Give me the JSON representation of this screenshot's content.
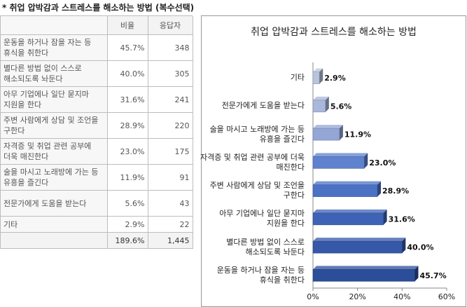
{
  "title": "* 취업 압박감과 스트레스를 해소하는 방법 (복수선택)",
  "table": {
    "headers": [
      "",
      "비율",
      "응답자"
    ],
    "rows": [
      {
        "label": "운동을 하거나 잠을 자는 등 휴식을 취한다",
        "ratio": "45.7%",
        "count": "348"
      },
      {
        "label": "별다른 방법 없이 스스로 해소되도록 놔둔다",
        "ratio": "40.0%",
        "count": "305"
      },
      {
        "label": "아무 기업에나 일단 묻지마 지원을 한다",
        "ratio": "31.6%",
        "count": "241"
      },
      {
        "label": "주변 사람에게 상담 및 조언을 구한다",
        "ratio": "28.9%",
        "count": "220"
      },
      {
        "label": "자격증 및 취업 관련 공부에 더욱 매진한다",
        "ratio": "23.0%",
        "count": "175"
      },
      {
        "label": "술을 마시고 노래방에 가는 등 유흥을 즐긴다",
        "ratio": "11.9%",
        "count": "91"
      },
      {
        "label": "전문가에게 도움을 받는다",
        "ratio": "5.6%",
        "count": "43"
      },
      {
        "label": "기타",
        "ratio": "2.9%",
        "count": "22"
      }
    ],
    "total": {
      "label": "",
      "ratio": "189.6%",
      "count": "1,445"
    }
  },
  "chart_data": {
    "type": "bar",
    "orientation": "horizontal",
    "title": "취업 압박감과 스트레스를 해소하는 방법",
    "categories": [
      "기타",
      "전문가에게 도움을 받는다",
      "술을 마시고 노래방에 가는 등 유흥을 즐긴다",
      "자격증 및 취업 관련 공부에 더욱 매진한다",
      "주변 사람에게 상담 및 조언을 구한다",
      "아무 기업에나 일단 묻지마 지원을 한다",
      "별다른 방법 없이 스스로 해소되도록 놔둔다",
      "운동을 하거나 잠을 자는 등 휴식을 취한다"
    ],
    "values": [
      2.9,
      5.6,
      11.9,
      23.0,
      28.9,
      31.6,
      40.0,
      45.7
    ],
    "value_labels": [
      "2.9%",
      "5.6%",
      "11.9%",
      "23.0%",
      "28.9%",
      "31.6%",
      "40.0%",
      "45.7%"
    ],
    "xlim": [
      0,
      60
    ],
    "xticks": [
      0,
      20,
      40,
      60
    ],
    "xtick_labels": [
      "0%",
      "20%",
      "40%",
      "60%"
    ],
    "grid": false,
    "legend": "none",
    "colors": [
      "#b8c4de",
      "#a9b7db",
      "#93a6d6",
      "#5f82cf",
      "#4c72c6",
      "#3e63b6",
      "#3558a8",
      "#2c4d99"
    ]
  }
}
